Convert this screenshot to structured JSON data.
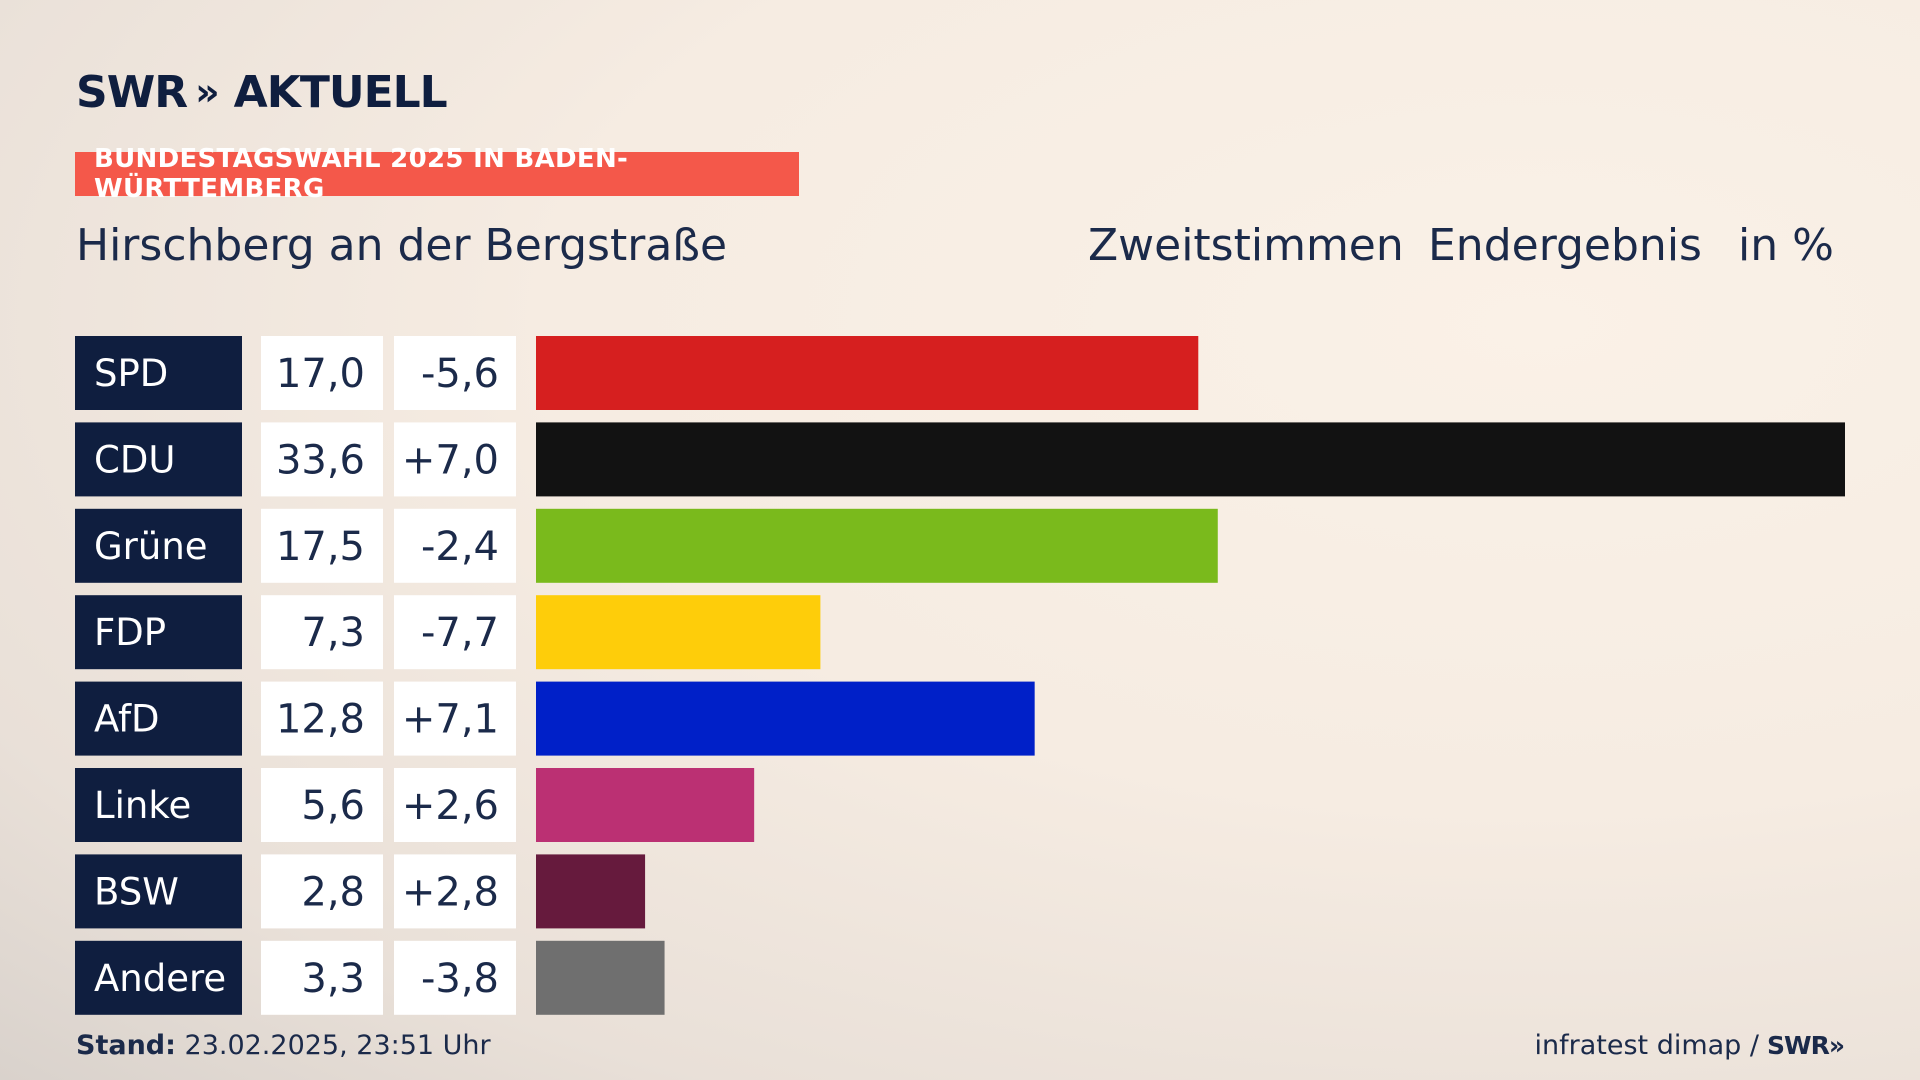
{
  "header": {
    "logo_text": "SWR",
    "logo_chevrons": "»",
    "logo_suffix": "AKTUELL",
    "badge": "BUNDESTAGSWAHL 2025 IN BADEN-WÜRTTEMBERG",
    "place": "Hirschberg an der Bergstraße",
    "col1": "Zweitstimmen",
    "col2": "Endergebnis",
    "col3": "in %"
  },
  "footer": {
    "stand_label": "Stand:",
    "stand_value": "23.02.2025, 23:51 Uhr",
    "source": "infratest dimap /",
    "source_logo": "SWR»"
  },
  "colors": {
    "label_bg": "#0f1e3f",
    "badge": "#f4584a"
  },
  "chart_data": {
    "type": "bar",
    "orientation": "horizontal",
    "categories": [
      "SPD",
      "CDU",
      "Grüne",
      "FDP",
      "AfD",
      "Linke",
      "BSW",
      "Andere"
    ],
    "values": [
      17.0,
      33.6,
      17.5,
      7.3,
      12.8,
      5.6,
      2.8,
      3.3
    ],
    "value_labels": [
      "17,0",
      "33,6",
      "17,5",
      "7,3",
      "12,8",
      "5,6",
      "2,8",
      "3,3"
    ],
    "changes": [
      "-5,6",
      "+7,0",
      "-2,4",
      "-7,7",
      "+7,1",
      "+2,6",
      "+2,8",
      "-3,8"
    ],
    "colors": [
      "#d61f1f",
      "#121212",
      "#7aba1c",
      "#fecd0a",
      "#0020c8",
      "#bb3073",
      "#661a3d",
      "#6f6f6f"
    ],
    "xlim": [
      0,
      33.6
    ]
  }
}
